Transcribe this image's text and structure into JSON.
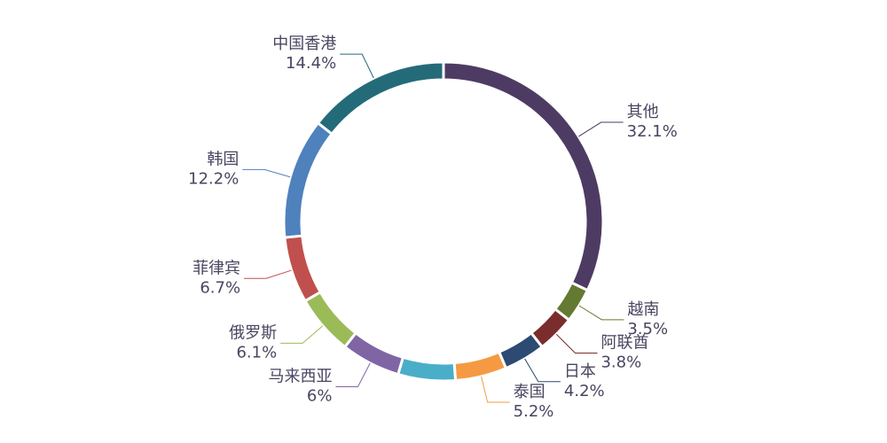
{
  "chart_data": {
    "type": "donut",
    "categories": [
      "其他",
      "越南",
      "阿联酋",
      "日本",
      "泰国",
      null,
      "马来西亚",
      "俄罗斯",
      "菲律宾",
      "韩国",
      "中国香港"
    ],
    "values": [
      32.1,
      3.5,
      3.8,
      4.2,
      5.2,
      5.8,
      6,
      6.1,
      6.7,
      12.2,
      14.4
    ],
    "value_labels": [
      "32.1%",
      "3.5%",
      "3.8%",
      "4.2%",
      "5.2%",
      null,
      "6%",
      "6.1%",
      "6.7%",
      "12.2%",
      "14.4%"
    ],
    "colors": [
      "#4e3b63",
      "#647a32",
      "#7b2c2c",
      "#2c4a72",
      "#f59a43",
      "#4aaec8",
      "#8065a5",
      "#9bbb59",
      "#c0504d",
      "#4f81bd",
      "#246b7a"
    ]
  }
}
